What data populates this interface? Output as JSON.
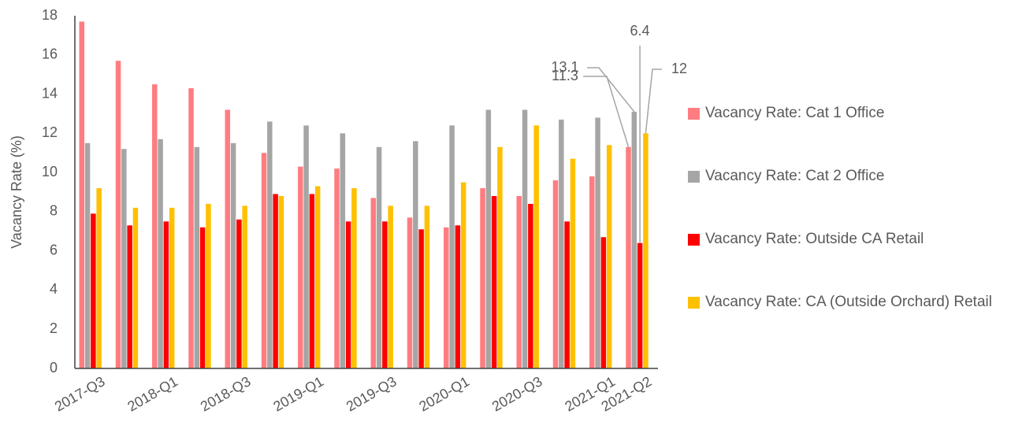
{
  "chart_data": {
    "type": "bar",
    "y_label": "Vacancy Rate (%)",
    "categories": [
      "2017-Q3",
      null,
      "2018-Q1",
      null,
      "2018-Q3",
      null,
      "2019-Q1",
      null,
      "2019-Q3",
      null,
      "2020-Q1",
      null,
      "2020-Q3",
      null,
      "2021-Q1",
      "2021-Q2"
    ],
    "series": [
      {
        "name": "Vacancy Rate: Cat 1 Office",
        "color": "#ff7c80",
        "values": [
          17.7,
          15.7,
          14.5,
          14.3,
          13.2,
          11.0,
          10.3,
          10.2,
          8.7,
          7.7,
          7.2,
          9.2,
          8.8,
          9.6,
          9.8,
          11.3
        ],
        "value_labels": [
          null,
          null,
          null,
          null,
          null,
          null,
          null,
          null,
          null,
          null,
          null,
          null,
          null,
          null,
          null,
          "11.3"
        ]
      },
      {
        "name": "Vacancy Rate: Cat 2 Office",
        "color": "#a5a5a5",
        "values": [
          11.5,
          11.2,
          11.7,
          11.3,
          11.5,
          12.6,
          12.4,
          12.0,
          11.3,
          11.6,
          12.4,
          13.2,
          13.2,
          12.7,
          12.8,
          13.1
        ],
        "value_labels": [
          null,
          null,
          null,
          null,
          null,
          null,
          null,
          null,
          null,
          null,
          null,
          null,
          null,
          null,
          null,
          "13.1"
        ]
      },
      {
        "name": "Vacancy Rate: Outside CA Retail",
        "color": "#ff0000",
        "values": [
          7.9,
          7.3,
          7.5,
          7.2,
          7.6,
          8.9,
          8.9,
          7.5,
          7.5,
          7.1,
          7.3,
          8.8,
          8.4,
          7.5,
          6.7,
          6.4
        ],
        "value_labels": [
          null,
          null,
          null,
          null,
          null,
          null,
          null,
          null,
          null,
          null,
          null,
          null,
          null,
          null,
          null,
          "6.4"
        ]
      },
      {
        "name": "Vacancy Rate: CA (Outside Orchard) Retail",
        "color": "#ffc000",
        "values": [
          9.2,
          8.2,
          8.2,
          8.4,
          8.3,
          8.8,
          9.3,
          9.2,
          8.3,
          8.3,
          9.5,
          11.3,
          12.4,
          10.7,
          11.4,
          12.0
        ],
        "value_labels": [
          null,
          null,
          null,
          null,
          null,
          null,
          null,
          null,
          null,
          null,
          null,
          null,
          null,
          null,
          null,
          "12"
        ]
      }
    ],
    "ylim": [
      0,
      18
    ],
    "yticks": [
      0,
      2,
      4,
      6,
      8,
      10,
      12,
      14,
      16,
      18
    ],
    "grid": false,
    "legend": "right"
  }
}
